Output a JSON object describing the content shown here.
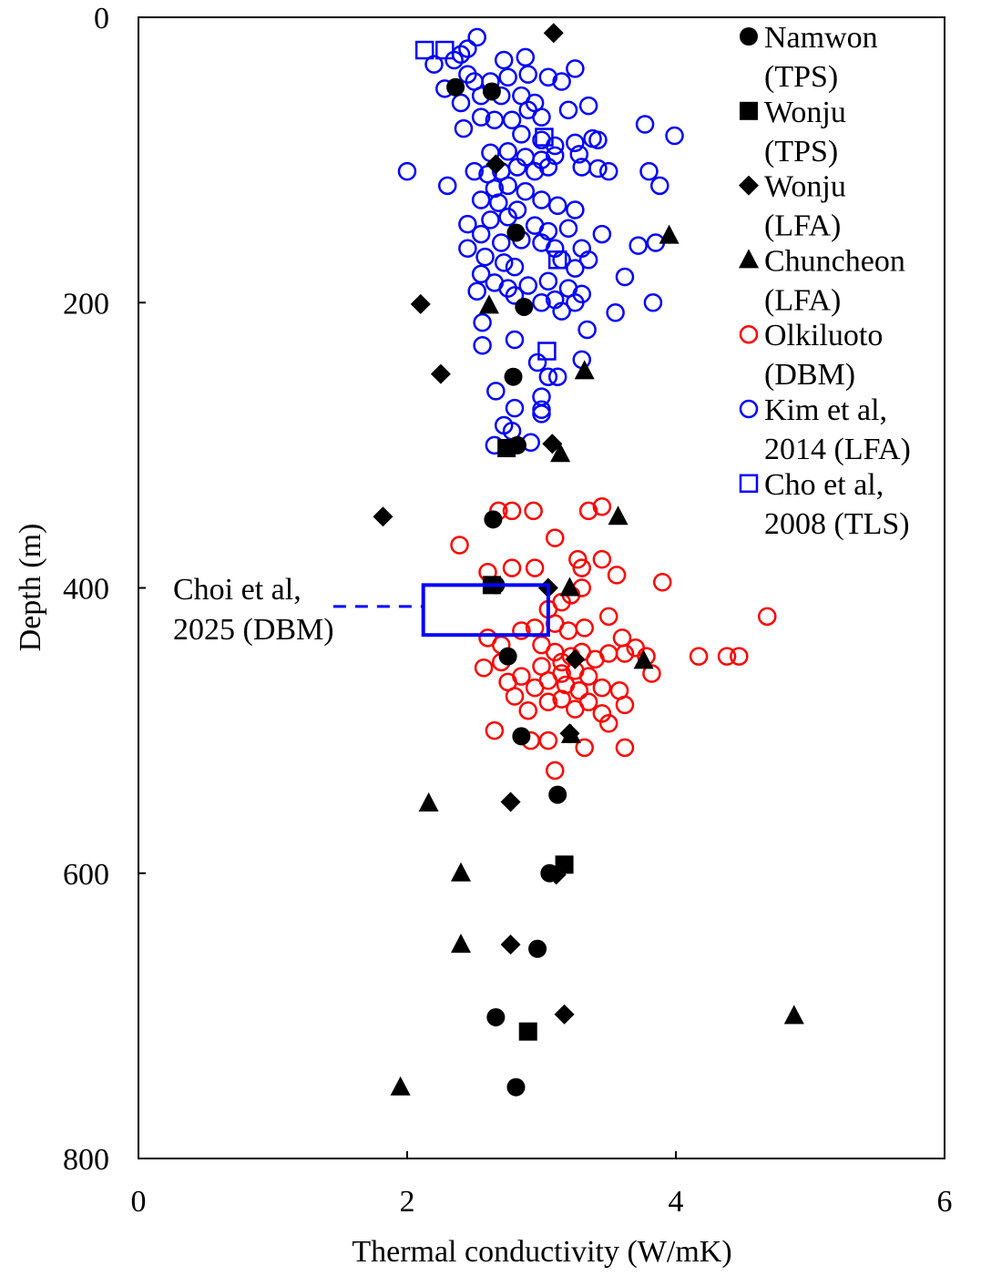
{
  "chart_data": {
    "type": "scatter",
    "xlabel": "Thermal conductivity (W/mK)",
    "ylabel": "Depth (m)",
    "xlim": [
      0,
      6
    ],
    "ylim": [
      0,
      800
    ],
    "y_inverted": true,
    "xticks": [
      "0",
      "2",
      "4",
      "6"
    ],
    "yticks": [
      "0",
      "200",
      "400",
      "600",
      "800"
    ],
    "legend_position": "top-right",
    "series": [
      {
        "name": "Namwon\n(TPS)",
        "label_lines": [
          "Namwon",
          "(TPS)"
        ],
        "marker": "filled-circle",
        "color": "#000000",
        "points": [
          [
            2.36,
            49
          ],
          [
            2.63,
            52
          ],
          [
            2.81,
            151
          ],
          [
            2.87,
            203
          ],
          [
            2.79,
            252
          ],
          [
            2.82,
            300
          ],
          [
            2.64,
            352
          ],
          [
            2.66,
            398
          ],
          [
            2.75,
            448
          ],
          [
            2.85,
            504
          ],
          [
            3.12,
            545
          ],
          [
            3.06,
            600
          ],
          [
            2.97,
            653
          ],
          [
            2.66,
            701
          ],
          [
            2.81,
            750
          ]
        ]
      },
      {
        "name": "Wonju\n(TPS)",
        "label_lines": [
          "Wonju",
          "(TPS)"
        ],
        "marker": "filled-square",
        "color": "#000000",
        "points": [
          [
            2.74,
            302
          ],
          [
            2.63,
            398
          ],
          [
            3.17,
            594
          ],
          [
            2.9,
            711
          ]
        ]
      },
      {
        "name": "Wonju\n(LFA)",
        "label_lines": [
          "Wonju",
          "(LFA)"
        ],
        "marker": "filled-diamond",
        "color": "#000000",
        "points": [
          [
            3.09,
            11
          ],
          [
            2.66,
            103
          ],
          [
            2.1,
            201
          ],
          [
            2.25,
            250
          ],
          [
            3.08,
            299
          ],
          [
            1.82,
            350
          ],
          [
            3.05,
            400
          ],
          [
            3.25,
            450
          ],
          [
            3.21,
            502
          ],
          [
            2.77,
            550
          ],
          [
            3.11,
            601
          ],
          [
            2.77,
            650
          ],
          [
            3.17,
            699
          ]
        ]
      },
      {
        "name": "Chuncheon\n(LFA)",
        "label_lines": [
          "Chuncheon",
          "(LFA)"
        ],
        "marker": "filled-triangle",
        "color": "#000000",
        "points": [
          [
            3.95,
            153
          ],
          [
            2.61,
            202
          ],
          [
            3.32,
            248
          ],
          [
            3.14,
            306
          ],
          [
            3.57,
            350
          ],
          [
            3.21,
            400
          ],
          [
            3.76,
            451
          ],
          [
            3.22,
            503
          ],
          [
            2.16,
            551
          ],
          [
            2.4,
            600
          ],
          [
            2.4,
            650
          ],
          [
            4.88,
            700
          ],
          [
            1.95,
            750
          ]
        ]
      },
      {
        "name": "Olkiluoto\n(DBM)",
        "label_lines": [
          "Olkiluoto",
          "(DBM)"
        ],
        "marker": "open-circle",
        "color": "#ff0000",
        "points": [
          [
            2.68,
            346
          ],
          [
            2.78,
            346
          ],
          [
            2.94,
            346
          ],
          [
            3.35,
            346
          ],
          [
            3.45,
            343
          ],
          [
            3.1,
            365
          ],
          [
            2.39,
            370
          ],
          [
            2.6,
            389
          ],
          [
            2.78,
            386
          ],
          [
            2.95,
            386
          ],
          [
            3.27,
            380
          ],
          [
            3.45,
            380
          ],
          [
            3.3,
            386
          ],
          [
            3.56,
            391
          ],
          [
            3.9,
            396
          ],
          [
            3.15,
            410
          ],
          [
            3.22,
            405
          ],
          [
            3.3,
            400
          ],
          [
            3.05,
            415
          ],
          [
            3.1,
            425
          ],
          [
            3.2,
            430
          ],
          [
            3.32,
            428
          ],
          [
            3.5,
            420
          ],
          [
            3.6,
            435
          ],
          [
            4.68,
            420
          ],
          [
            2.6,
            435
          ],
          [
            2.7,
            440
          ],
          [
            2.85,
            430
          ],
          [
            2.95,
            428
          ],
          [
            3.0,
            440
          ],
          [
            3.1,
            445
          ],
          [
            3.15,
            452
          ],
          [
            3.22,
            448
          ],
          [
            3.3,
            445
          ],
          [
            3.4,
            450
          ],
          [
            3.5,
            446
          ],
          [
            3.62,
            446
          ],
          [
            3.7,
            442
          ],
          [
            3.78,
            448
          ],
          [
            4.17,
            448
          ],
          [
            4.38,
            448
          ],
          [
            4.47,
            448
          ],
          [
            2.57,
            456
          ],
          [
            2.75,
            466
          ],
          [
            2.85,
            462
          ],
          [
            2.95,
            470
          ],
          [
            3.05,
            465
          ],
          [
            3.15,
            460
          ],
          [
            3.25,
            458
          ],
          [
            3.35,
            462
          ],
          [
            3.45,
            470
          ],
          [
            3.58,
            472
          ],
          [
            3.82,
            460
          ],
          [
            2.8,
            476
          ],
          [
            2.9,
            486
          ],
          [
            3.05,
            480
          ],
          [
            3.15,
            478
          ],
          [
            3.25,
            485
          ],
          [
            3.35,
            480
          ],
          [
            3.45,
            488
          ],
          [
            3.5,
            495
          ],
          [
            3.62,
            482
          ],
          [
            2.65,
            500
          ],
          [
            2.92,
            507
          ],
          [
            3.05,
            507
          ],
          [
            3.32,
            512
          ],
          [
            3.62,
            512
          ],
          [
            3.1,
            528
          ],
          [
            3.18,
            468
          ],
          [
            3.0,
            455
          ],
          [
            3.28,
            472
          ],
          [
            2.7,
            452
          ]
        ]
      },
      {
        "name": "Kim et al,\n2014 (LFA)",
        "label_lines": [
          "Kim et al,",
          "2014 (LFA)"
        ],
        "marker": "open-circle",
        "color": "#0000ff",
        "points": [
          [
            2.52,
            14
          ],
          [
            2.45,
            22
          ],
          [
            2.4,
            26
          ],
          [
            2.2,
            33
          ],
          [
            2.35,
            30
          ],
          [
            2.45,
            40
          ],
          [
            2.28,
            50
          ],
          [
            2.5,
            45
          ],
          [
            2.62,
            45
          ],
          [
            2.55,
            55
          ],
          [
            2.72,
            30
          ],
          [
            2.88,
            28
          ],
          [
            2.75,
            42
          ],
          [
            2.9,
            40
          ],
          [
            3.05,
            42
          ],
          [
            3.15,
            45
          ],
          [
            3.25,
            36
          ],
          [
            2.7,
            55
          ],
          [
            2.85,
            55
          ],
          [
            2.95,
            60
          ],
          [
            2.4,
            60
          ],
          [
            2.55,
            70
          ],
          [
            2.65,
            72
          ],
          [
            2.78,
            72
          ],
          [
            2.9,
            65
          ],
          [
            3.0,
            70
          ],
          [
            3.2,
            65
          ],
          [
            3.35,
            62
          ],
          [
            2.42,
            78
          ],
          [
            2.85,
            82
          ],
          [
            3.0,
            86
          ],
          [
            3.1,
            90
          ],
          [
            3.25,
            88
          ],
          [
            3.38,
            85
          ],
          [
            3.42,
            86
          ],
          [
            3.77,
            75
          ],
          [
            3.99,
            83
          ],
          [
            2.62,
            95
          ],
          [
            2.75,
            94
          ],
          [
            2.88,
            98
          ],
          [
            3.0,
            100
          ],
          [
            3.1,
            97
          ],
          [
            3.28,
            96
          ],
          [
            3.3,
            105
          ],
          [
            2.5,
            108
          ],
          [
            2.6,
            110
          ],
          [
            2.7,
            108
          ],
          [
            2.82,
            105
          ],
          [
            2.95,
            108
          ],
          [
            3.05,
            105
          ],
          [
            3.42,
            106
          ],
          [
            3.5,
            108
          ],
          [
            3.88,
            118
          ],
          [
            3.8,
            108
          ],
          [
            2.0,
            108
          ],
          [
            2.3,
            118
          ],
          [
            2.65,
            120
          ],
          [
            2.75,
            118
          ],
          [
            2.88,
            122
          ],
          [
            2.55,
            128
          ],
          [
            2.68,
            130
          ],
          [
            2.82,
            135
          ],
          [
            3.0,
            128
          ],
          [
            3.12,
            132
          ],
          [
            3.25,
            135
          ],
          [
            2.45,
            145
          ],
          [
            2.62,
            142
          ],
          [
            2.75,
            140
          ],
          [
            2.95,
            146
          ],
          [
            3.05,
            150
          ],
          [
            3.2,
            148
          ],
          [
            3.45,
            152
          ],
          [
            2.55,
            152
          ],
          [
            2.7,
            158
          ],
          [
            2.85,
            156
          ],
          [
            3.0,
            158
          ],
          [
            3.1,
            162
          ],
          [
            3.3,
            162
          ],
          [
            3.35,
            170
          ],
          [
            3.72,
            160
          ],
          [
            3.85,
            158
          ],
          [
            2.45,
            162
          ],
          [
            2.58,
            168
          ],
          [
            2.72,
            172
          ],
          [
            2.8,
            175
          ],
          [
            3.15,
            170
          ],
          [
            3.25,
            176
          ],
          [
            3.62,
            182
          ],
          [
            2.55,
            180
          ],
          [
            2.65,
            186
          ],
          [
            2.75,
            190
          ],
          [
            2.9,
            188
          ],
          [
            3.05,
            185
          ],
          [
            3.2,
            190
          ],
          [
            3.3,
            194
          ],
          [
            2.52,
            192
          ],
          [
            2.8,
            195
          ],
          [
            3.0,
            200
          ],
          [
            3.1,
            198
          ],
          [
            3.15,
            206
          ],
          [
            3.25,
            200
          ],
          [
            3.55,
            207
          ],
          [
            3.83,
            200
          ],
          [
            2.56,
            214
          ],
          [
            2.8,
            226
          ],
          [
            3.34,
            219
          ],
          [
            2.56,
            230
          ],
          [
            2.97,
            242
          ],
          [
            3.3,
            240
          ],
          [
            2.66,
            262
          ],
          [
            3.05,
            252
          ],
          [
            3.12,
            252
          ],
          [
            2.8,
            274
          ],
          [
            3.0,
            266
          ],
          [
            3.0,
            278
          ],
          [
            2.72,
            286
          ],
          [
            2.78,
            290
          ],
          [
            2.65,
            300
          ],
          [
            2.92,
            298
          ],
          [
            3.0,
            275
          ]
        ]
      },
      {
        "name": "Cho et al,\n2008 (TLS)",
        "label_lines": [
          "Cho et al,",
          "2008 (TLS)"
        ],
        "marker": "open-square",
        "color": "#0000ff",
        "points": [
          [
            2.13,
            23
          ],
          [
            2.28,
            23
          ],
          [
            3.02,
            84
          ],
          [
            3.12,
            170
          ],
          [
            3.04,
            234
          ]
        ]
      }
    ],
    "annotation": {
      "label_lines": [
        "Choi et al,",
        "2025 (DBM)"
      ],
      "color": "#0000ff",
      "box_x": [
        2.12,
        3.05
      ],
      "box_y": [
        398,
        433
      ],
      "leader_from_x": 1.45,
      "leader_y": 413
    }
  }
}
